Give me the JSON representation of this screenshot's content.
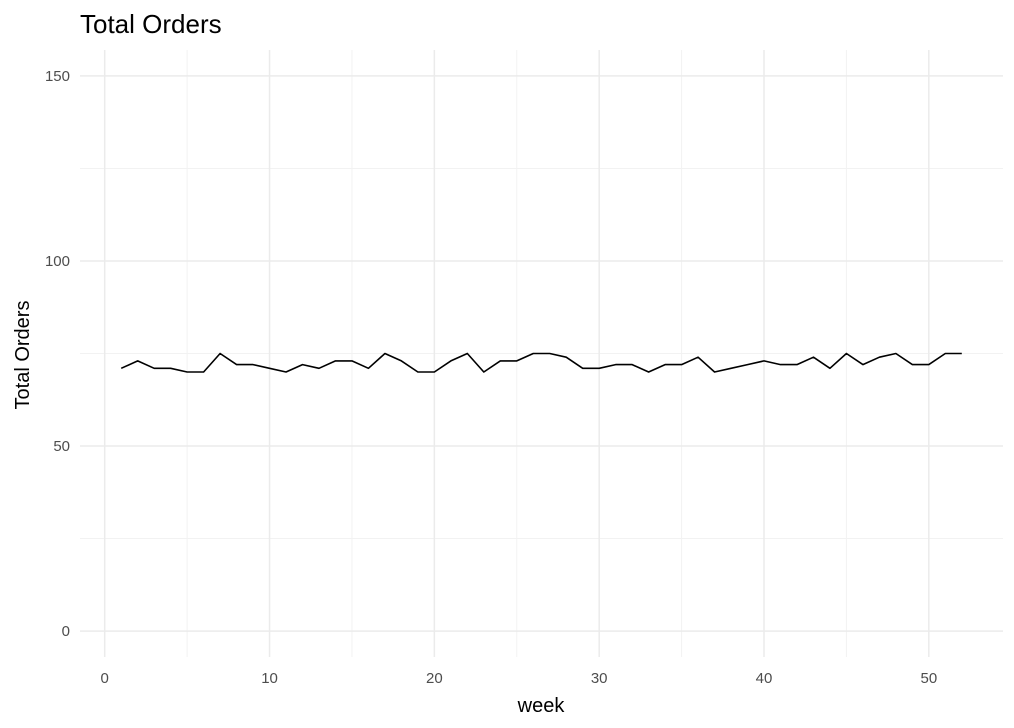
{
  "chart_data": {
    "type": "line",
    "title": "Total Orders",
    "xlabel": "week",
    "ylabel": "Total Orders",
    "xlim": [
      -1.5,
      54.5
    ],
    "ylim": [
      -7,
      157
    ],
    "x_ticks": [
      0,
      10,
      20,
      30,
      40,
      50
    ],
    "x_minor_ticks": [
      5,
      15,
      25,
      35,
      45
    ],
    "y_ticks": [
      0,
      50,
      100,
      150
    ],
    "y_minor_ticks": [
      25,
      75,
      125
    ],
    "grid": true,
    "series": [
      {
        "name": "Total Orders",
        "color": "#000000",
        "x": [
          1,
          2,
          3,
          4,
          5,
          6,
          7,
          8,
          9,
          10,
          11,
          12,
          13,
          14,
          15,
          16,
          17,
          18,
          19,
          20,
          21,
          22,
          23,
          24,
          25,
          26,
          27,
          28,
          29,
          30,
          31,
          32,
          33,
          34,
          35,
          36,
          37,
          38,
          39,
          40,
          41,
          42,
          43,
          44,
          45,
          46,
          47,
          48,
          49,
          50,
          51,
          52
        ],
        "values": [
          71,
          73,
          71,
          71,
          70,
          70,
          75,
          72,
          72,
          71,
          70,
          72,
          71,
          73,
          73,
          71,
          75,
          73,
          70,
          70,
          73,
          75,
          70,
          73,
          73,
          75,
          75,
          74,
          71,
          71,
          72,
          72,
          70,
          72,
          72,
          74,
          70,
          71,
          72,
          73,
          72,
          72,
          74,
          71,
          75,
          72,
          74,
          75,
          72,
          72,
          75,
          75
        ]
      }
    ]
  }
}
